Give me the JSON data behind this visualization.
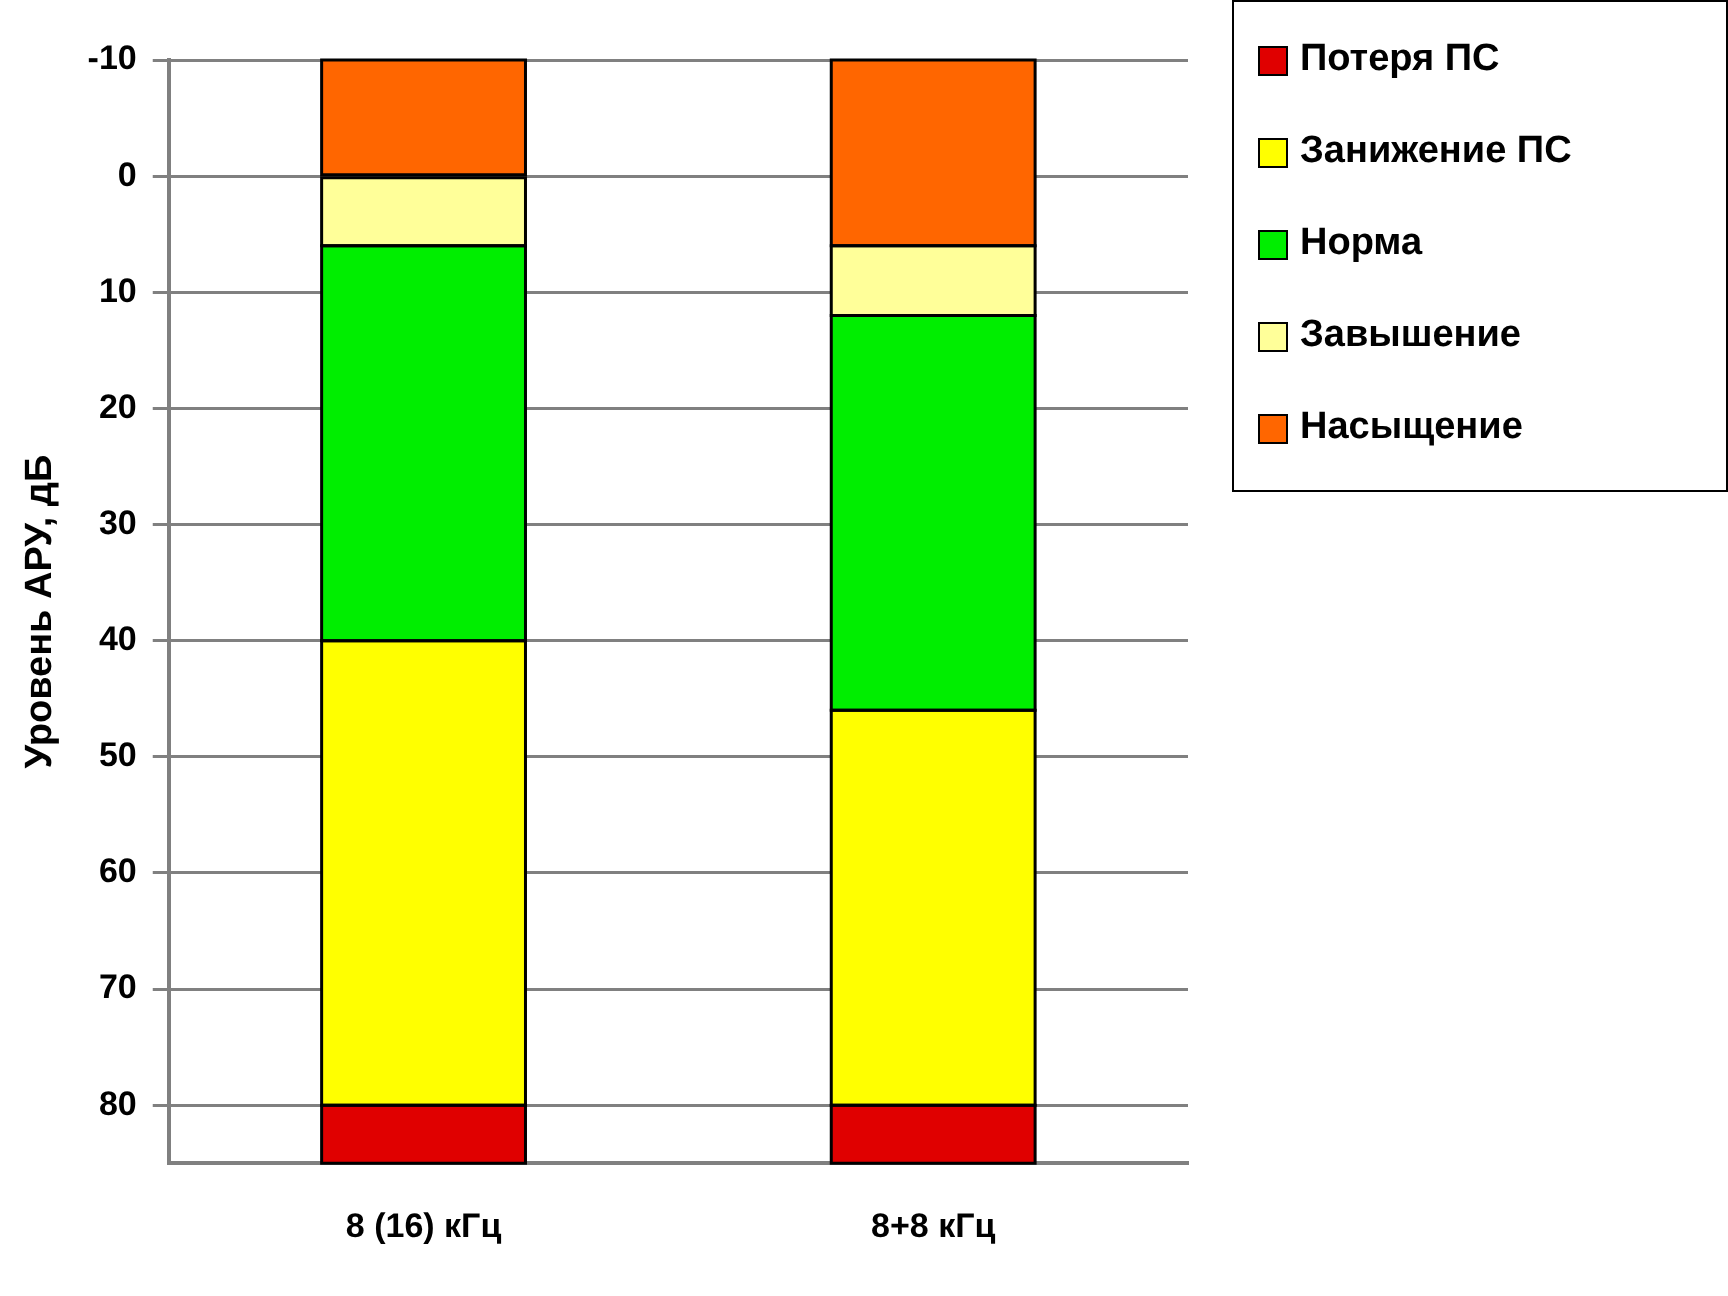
{
  "chart_data": {
    "type": "bar",
    "ylabel": "Уровень АРУ, дБ",
    "categories": [
      "8 (16) кГц",
      "8+8 кГц"
    ],
    "series": [
      {
        "name": "Потеря ПС",
        "color": "#e00000",
        "base": [
          80,
          80
        ],
        "values": [
          5,
          5
        ]
      },
      {
        "name": "Занижение ПС",
        "color": "#ffff00",
        "base": [
          40,
          46
        ],
        "values": [
          40,
          34
        ]
      },
      {
        "name": "Норма",
        "color": "#00ee00",
        "base": [
          6,
          12
        ],
        "values": [
          34,
          34
        ]
      },
      {
        "name": "Завышение",
        "color": "#ffff99",
        "base": [
          0,
          6
        ],
        "values": [
          6,
          6
        ]
      },
      {
        "name": "Насыщение",
        "color": "#ff6600",
        "base": [
          -10,
          -10
        ],
        "values": [
          10,
          16
        ]
      }
    ],
    "ylim": [
      85,
      -10
    ],
    "yticks": [
      -10,
      0,
      10,
      20,
      30,
      40,
      50,
      60,
      70,
      80
    ],
    "grid": "y",
    "legend": "top right"
  }
}
